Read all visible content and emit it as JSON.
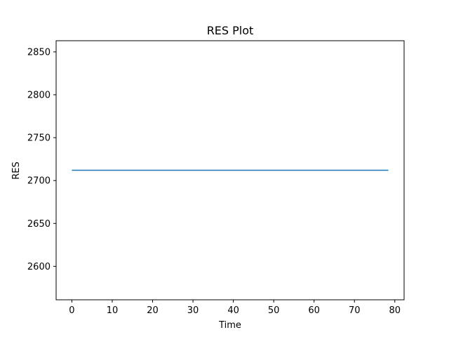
{
  "chart_data": {
    "type": "line",
    "title": "RES Plot",
    "xlabel": "Time",
    "ylabel": "RES",
    "xlim": [
      -3.9,
      82.3
    ],
    "ylim": [
      2561,
      2863
    ],
    "xticks": [
      0,
      10,
      20,
      30,
      40,
      50,
      60,
      70,
      80
    ],
    "yticks": [
      2600,
      2650,
      2700,
      2750,
      2800,
      2850
    ],
    "grid": false,
    "legend": "none",
    "series": [
      {
        "color": "#1f77b4",
        "x": [
          0,
          78.4
        ],
        "y": [
          2712,
          2712
        ]
      }
    ]
  }
}
